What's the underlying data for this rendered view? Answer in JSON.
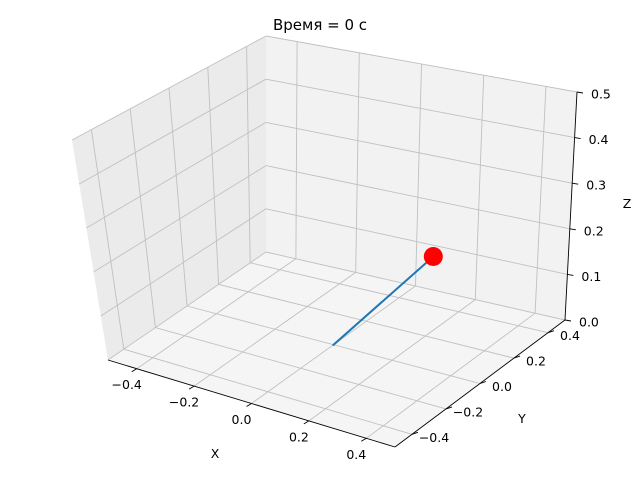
{
  "chart_data": {
    "type": "line",
    "title": "Время = 0 с",
    "xlabel": "X",
    "ylabel": "Y",
    "zlabel": "Z",
    "xlim": [
      -0.5,
      0.5
    ],
    "ylim": [
      -0.5,
      0.5
    ],
    "zlim": [
      0.5,
      0.0
    ],
    "xticks": [
      -0.4,
      -0.2,
      0.0,
      0.2,
      0.4
    ],
    "yticks": [
      -0.4,
      -0.2,
      0.0,
      0.2,
      0.4
    ],
    "zticks": [
      0.0,
      0.1,
      0.2,
      0.3,
      0.4,
      0.5
    ],
    "xtick_labels": [
      "−0.4",
      "−0.2",
      "0.0",
      "0.2",
      "0.4"
    ],
    "ytick_labels": [
      "−0.4",
      "−0.2",
      "0.0",
      "0.2",
      "0.4"
    ],
    "ztick_labels": [
      "0.0",
      "0.1",
      "0.2",
      "0.3",
      "0.4",
      "0.5"
    ],
    "grid": true,
    "series": [
      {
        "type": "line",
        "color": "#1f77b4",
        "points": [
          [
            0.0,
            0.0,
            0.0
          ],
          [
            0.22,
            0.2,
            0.18
          ]
        ]
      },
      {
        "type": "scatter",
        "color": "#ff0000",
        "points": [
          [
            0.22,
            0.2,
            0.18
          ]
        ]
      }
    ]
  }
}
